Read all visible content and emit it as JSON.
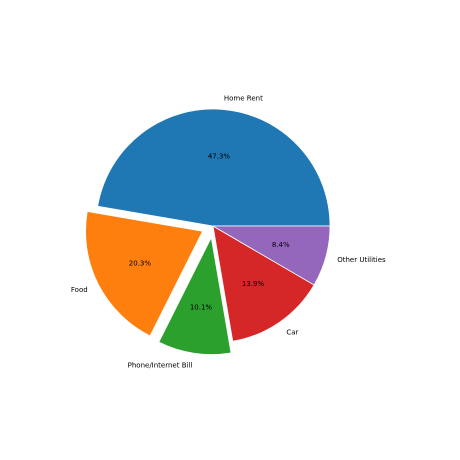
{
  "chart_data": {
    "type": "pie",
    "categories": [
      "Home Rent",
      "Food",
      "Phone/Internet Bill",
      "Car",
      "Other Utilities"
    ],
    "values": [
      47.3,
      20.3,
      10.1,
      13.9,
      8.4
    ],
    "value_labels": [
      "47.3%",
      "20.3%",
      "10.1%",
      "13.9%",
      "8.4%"
    ],
    "colors": [
      "#1f77b4",
      "#ff7f0e",
      "#2ca02c",
      "#d62728",
      "#9467bd"
    ],
    "explode": [
      0,
      0.1,
      0.1,
      0,
      0
    ],
    "start_angle_deg": 0,
    "direction": "counterclockwise",
    "title": "",
    "legend": "none"
  }
}
